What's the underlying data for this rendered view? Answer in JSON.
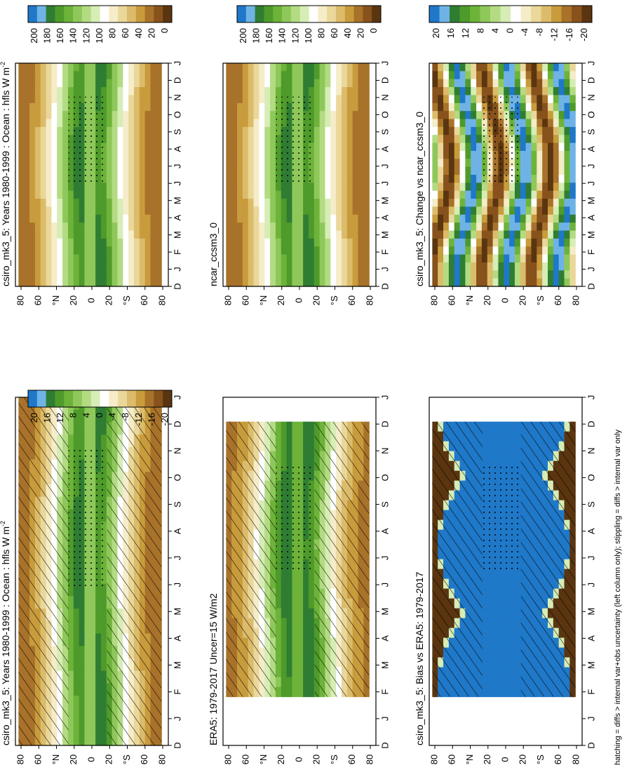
{
  "figure": {
    "footer": "hatching = diffs > internal var+obs uncertainty (left column only); stippling = diffs > internal var only"
  },
  "chart_data": [
    {
      "type": "heatmap",
      "title": "csiro_mk3_5: Years 1980-1999 : Ocean : hfls W m",
      "title_sup": "-2",
      "x_labels": [
        "D",
        "J",
        "F",
        "M",
        "A",
        "M",
        "J",
        "J",
        "A",
        "S",
        "O",
        "N",
        "D",
        "J"
      ],
      "y_labels": [
        "80",
        "60",
        "°N",
        "20",
        "0",
        "20",
        "°S",
        "60",
        "80"
      ],
      "kind": "mean",
      "hatching": true,
      "stippling": true
    },
    {
      "type": "heatmap",
      "title": "ERA5: 1979-2017 Uncer=15 W/m2",
      "x_labels": [
        "D",
        "J",
        "F",
        "M",
        "A",
        "M",
        "J",
        "J",
        "A",
        "S",
        "O",
        "N",
        "D",
        "J"
      ],
      "y_labels": [
        "80",
        "60",
        "°N",
        "20",
        "0",
        "20",
        "°S",
        "60",
        "80"
      ],
      "kind": "obs",
      "hatching": true,
      "stippling": true
    },
    {
      "type": "heatmap",
      "title": "csiro_mk3_5: Bias vs ERA5: 1979-2017",
      "x_labels": [
        "D",
        "J",
        "F",
        "M",
        "A",
        "M",
        "J",
        "J",
        "A",
        "S",
        "O",
        "N",
        "D",
        "J"
      ],
      "y_labels": [
        "80",
        "60",
        "°N",
        "20",
        "0",
        "20",
        "°S",
        "60",
        "80"
      ],
      "kind": "bias",
      "hatching": true,
      "stippling": true
    },
    {
      "type": "heatmap",
      "title": "csiro_mk3_5: Years 1980-1999 : Ocean : hfls W m",
      "title_sup": "-2",
      "x_labels": [
        "D",
        "J",
        "F",
        "M",
        "A",
        "M",
        "J",
        "J",
        "A",
        "S",
        "O",
        "N",
        "D",
        "J"
      ],
      "y_labels": [
        "80",
        "60",
        "°N",
        "20",
        "0",
        "20",
        "°S",
        "60",
        "80"
      ],
      "kind": "mean",
      "hatching": false,
      "stippling": true
    },
    {
      "type": "heatmap",
      "title": "ncar_ccsm3_0",
      "x_labels": [
        "D",
        "J",
        "F",
        "M",
        "A",
        "M",
        "J",
        "J",
        "A",
        "S",
        "O",
        "N",
        "D",
        "J"
      ],
      "y_labels": [
        "80",
        "60",
        "°N",
        "20",
        "0",
        "20",
        "°S",
        "60",
        "80"
      ],
      "kind": "model",
      "hatching": false,
      "stippling": true
    },
    {
      "type": "heatmap",
      "title": "csiro_mk3_5: Change vs ncar_ccsm3_0",
      "x_labels": [
        "D",
        "J",
        "F",
        "M",
        "A",
        "M",
        "J",
        "J",
        "A",
        "S",
        "O",
        "N",
        "D",
        "J"
      ],
      "y_labels": [
        "80",
        "60",
        "°N",
        "20",
        "0",
        "20",
        "°S",
        "60",
        "80"
      ],
      "kind": "change",
      "hatching": false,
      "stippling": true
    }
  ],
  "colorbars": [
    {
      "labels": [
        "200",
        "180",
        "160",
        "140",
        "120",
        "100",
        "80",
        "60",
        "40",
        "20",
        "0"
      ],
      "colors": [
        "#1f78c8",
        "#6fb3e6",
        "#2f7d32",
        "#4e9a2a",
        "#6db33a",
        "#8fc85a",
        "#b3db82",
        "#d6edb6",
        "#ffffff",
        "#f5ecc8",
        "#ead79a",
        "#dcbc6a",
        "#c89b3c",
        "#a8722a",
        "#87521c",
        "#5a3510"
      ]
    },
    {
      "labels": [
        "200",
        "180",
        "160",
        "140",
        "120",
        "100",
        "80",
        "60",
        "40",
        "20",
        "0"
      ],
      "colors": [
        "#1f78c8",
        "#6fb3e6",
        "#2f7d32",
        "#4e9a2a",
        "#6db33a",
        "#8fc85a",
        "#b3db82",
        "#d6edb6",
        "#ffffff",
        "#f5ecc8",
        "#ead79a",
        "#dcbc6a",
        "#c89b3c",
        "#a8722a",
        "#87521c",
        "#5a3510"
      ]
    },
    {
      "labels": [
        "20",
        "16",
        "12",
        "8",
        "4",
        "0",
        "-4",
        "-8",
        "-12",
        "-16",
        "-20"
      ],
      "colors": [
        "#1f78c8",
        "#6fb3e6",
        "#2f7d32",
        "#4e9a2a",
        "#6db33a",
        "#8fc85a",
        "#b3db82",
        "#d6edb6",
        "#ffffff",
        "#f5ecc8",
        "#ead79a",
        "#dcbc6a",
        "#c89b3c",
        "#a8722a",
        "#87521c",
        "#5a3510"
      ]
    },
    {
      "labels": [
        "20",
        "16",
        "12",
        "8",
        "4",
        "0",
        "-4",
        "-8",
        "-12",
        "-16",
        "-20"
      ],
      "colors": [
        "#1f78c8",
        "#6fb3e6",
        "#2f7d32",
        "#4e9a2a",
        "#6db33a",
        "#8fc85a",
        "#b3db82",
        "#d6edb6",
        "#ffffff",
        "#f5ecc8",
        "#ead79a",
        "#dcbc6a",
        "#c89b3c",
        "#a8722a",
        "#87521c",
        "#5a3510"
      ]
    }
  ]
}
